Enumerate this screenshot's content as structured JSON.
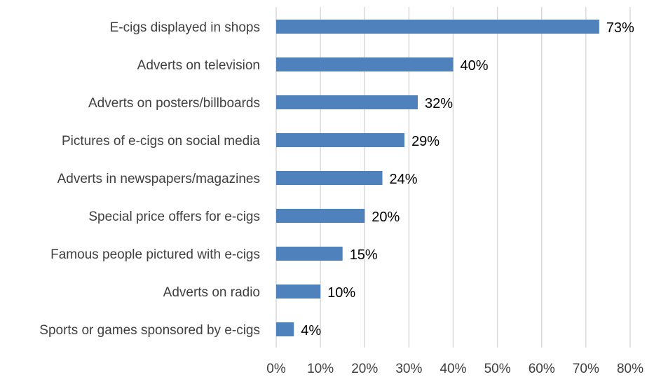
{
  "chart_data": {
    "type": "bar",
    "orientation": "horizontal",
    "categories": [
      "E-cigs displayed in shops",
      "Adverts on television",
      "Adverts on posters/billboards",
      "Pictures of e-cigs on social media",
      "Adverts in newspapers/magazines",
      "Special price offers for e-cigs",
      "Famous people pictured with e-cigs",
      "Adverts on radio",
      "Sports or games sponsored by e-cigs"
    ],
    "values": [
      73,
      40,
      32,
      29,
      24,
      20,
      15,
      10,
      4
    ],
    "data_labels": [
      "73%",
      "40%",
      "32%",
      "29%",
      "24%",
      "20%",
      "15%",
      "10%",
      "4%"
    ],
    "x_ticks": [
      "0%",
      "10%",
      "20%",
      "30%",
      "40%",
      "50%",
      "60%",
      "70%",
      "80%"
    ],
    "xlim": [
      0,
      80
    ],
    "grid": "vertical",
    "legend": "none",
    "colors": {
      "bar": "#4f81bd",
      "grid": "#d9d9d9"
    }
  }
}
